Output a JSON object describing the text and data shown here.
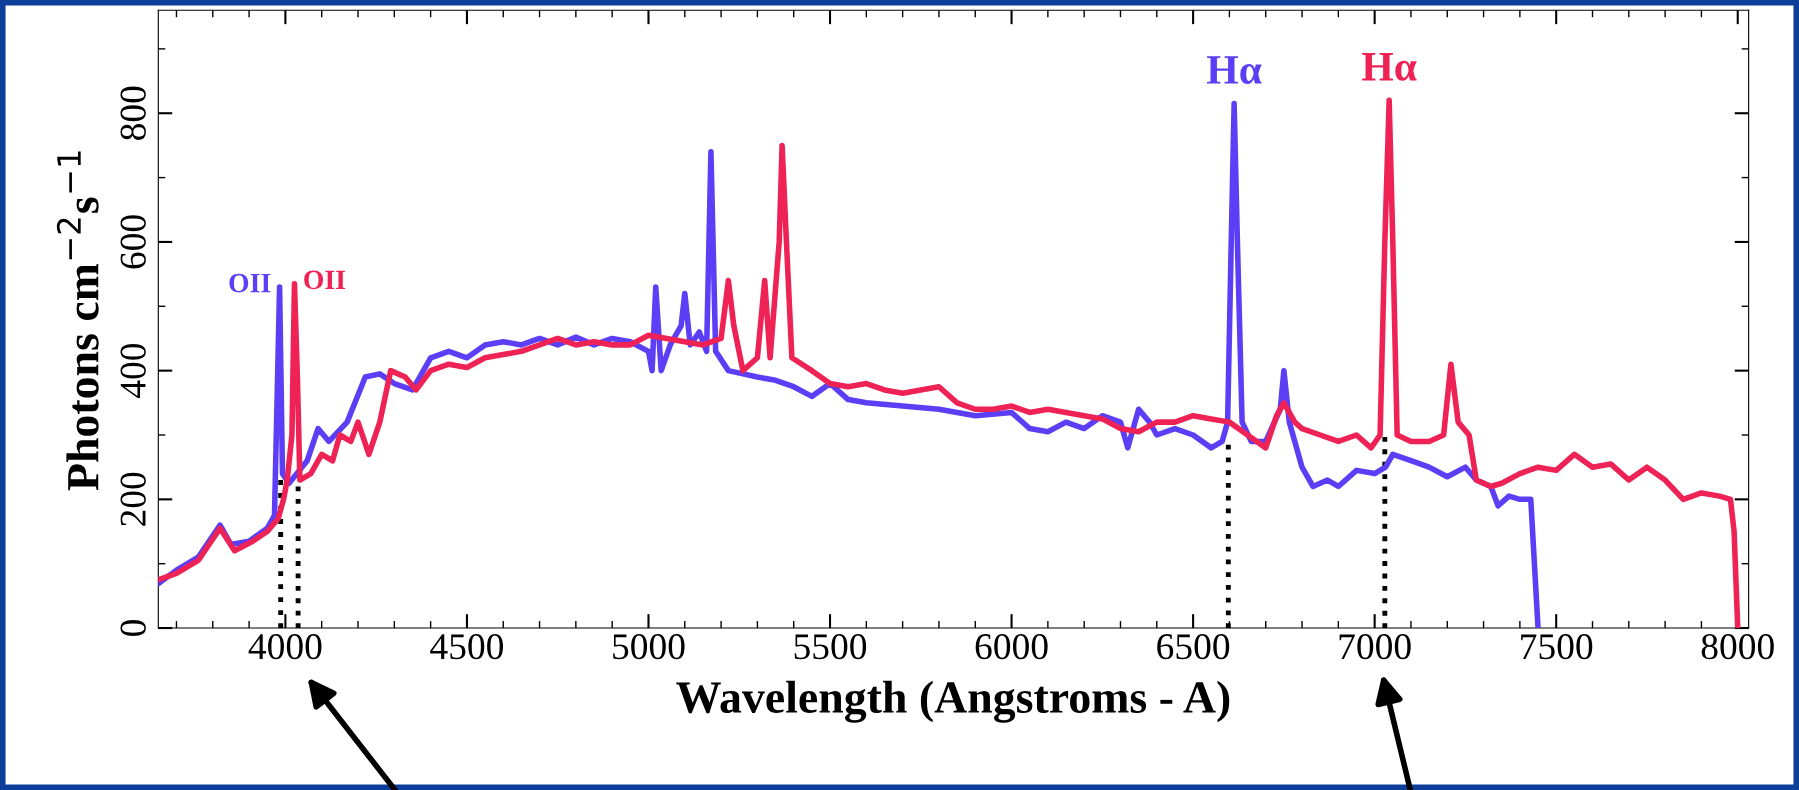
{
  "chart_data": {
    "type": "line",
    "xlabel": "Wavelength (Angstroms - A)",
    "ylabel": "Photons cm$^{−2}$s$^{−1}$",
    "xlim": [
      3650,
      8030
    ],
    "ylim": [
      0,
      960
    ],
    "xticks": [
      4000,
      4500,
      5000,
      5500,
      6000,
      6500,
      7000,
      7500,
      8000
    ],
    "yticks": [
      0,
      200,
      400,
      600,
      800
    ],
    "grid": false,
    "legend": false,
    "marker": "none",
    "line_style": "solid",
    "annotations": [
      {
        "text": "OII",
        "x": 3984,
        "y": 530
      },
      {
        "text": "OII",
        "x": 4025,
        "y": 535
      },
      {
        "text": "Hα",
        "x": 6613,
        "y": 815
      },
      {
        "text": "Hα",
        "x": 7040,
        "y": 820
      }
    ],
    "series": [
      {
        "color": "#5b3ef5",
        "x": [
          3652,
          3700,
          3760,
          3820,
          3850,
          3900,
          3950,
          3970,
          3984,
          3992,
          4010,
          4060,
          4090,
          4120,
          4170,
          4220,
          4260,
          4300,
          4350,
          4400,
          4450,
          4500,
          4550,
          4600,
          4650,
          4700,
          4750,
          4800,
          4850,
          4900,
          4950,
          5000,
          5010,
          5020,
          5035,
          5060,
          5090,
          5100,
          5115,
          5140,
          5160,
          5172,
          5185,
          5220,
          5300,
          5350,
          5400,
          5450,
          5500,
          5550,
          5600,
          5700,
          5800,
          5900,
          6000,
          6050,
          6100,
          6150,
          6200,
          6250,
          6300,
          6320,
          6350,
          6380,
          6400,
          6450,
          6500,
          6550,
          6580,
          6595,
          6605,
          6613,
          6622,
          6635,
          6660,
          6700,
          6740,
          6750,
          6765,
          6800,
          6830,
          6870,
          6900,
          6950,
          7000,
          7030,
          7050,
          7100,
          7150,
          7200,
          7250,
          7280,
          7320,
          7340,
          7370,
          7400,
          7430,
          7440,
          7450
        ],
        "values": [
          70,
          90,
          110,
          160,
          130,
          135,
          155,
          175,
          530,
          240,
          225,
          260,
          310,
          290,
          320,
          390,
          395,
          380,
          370,
          420,
          430,
          420,
          440,
          445,
          440,
          450,
          440,
          452,
          440,
          450,
          445,
          430,
          400,
          530,
          400,
          440,
          470,
          520,
          440,
          460,
          430,
          740,
          430,
          400,
          390,
          385,
          375,
          360,
          380,
          355,
          350,
          345,
          340,
          330,
          335,
          310,
          305,
          320,
          310,
          330,
          320,
          280,
          340,
          320,
          300,
          310,
          300,
          280,
          290,
          320,
          600,
          815,
          600,
          320,
          290,
          290,
          340,
          400,
          320,
          250,
          220,
          230,
          220,
          245,
          240,
          250,
          270,
          260,
          250,
          235,
          250,
          230,
          220,
          190,
          205,
          200,
          200,
          100,
          0
        ]
      },
      {
        "color": "#ee2255",
        "x": [
          3650,
          3700,
          3760,
          3820,
          3860,
          3910,
          3950,
          3980,
          3995,
          4005,
          4018,
          4025,
          4033,
          4040,
          4070,
          4100,
          4130,
          4150,
          4180,
          4200,
          4230,
          4260,
          4290,
          4330,
          4360,
          4400,
          4450,
          4500,
          4550,
          4600,
          4650,
          4700,
          4750,
          4800,
          4850,
          4900,
          4950,
          5000,
          5050,
          5100,
          5150,
          5200,
          5220,
          5235,
          5260,
          5300,
          5320,
          5335,
          5360,
          5368,
          5380,
          5395,
          5450,
          5500,
          5550,
          5600,
          5650,
          5700,
          5800,
          5850,
          5900,
          5950,
          6000,
          6050,
          6100,
          6150,
          6200,
          6250,
          6300,
          6350,
          6400,
          6450,
          6500,
          6550,
          6600,
          6650,
          6700,
          6730,
          6750,
          6780,
          6800,
          6850,
          6900,
          6950,
          6990,
          7015,
          7028,
          7040,
          7050,
          7062,
          7100,
          7150,
          7190,
          7210,
          7230,
          7260,
          7280,
          7320,
          7350,
          7400,
          7450,
          7500,
          7550,
          7600,
          7650,
          7700,
          7750,
          7800,
          7850,
          7900,
          7950,
          7980,
          7990,
          8000
        ],
        "values": [
          75,
          85,
          105,
          155,
          120,
          135,
          150,
          170,
          200,
          230,
          300,
          535,
          390,
          230,
          240,
          270,
          260,
          300,
          290,
          320,
          270,
          320,
          400,
          390,
          370,
          400,
          410,
          405,
          420,
          425,
          430,
          440,
          450,
          440,
          445,
          440,
          440,
          455,
          450,
          445,
          440,
          450,
          540,
          470,
          400,
          420,
          540,
          420,
          600,
          750,
          600,
          420,
          400,
          380,
          375,
          380,
          370,
          365,
          375,
          350,
          340,
          340,
          345,
          335,
          340,
          335,
          330,
          325,
          310,
          305,
          320,
          320,
          330,
          325,
          320,
          300,
          280,
          330,
          350,
          320,
          310,
          300,
          290,
          300,
          280,
          300,
          600,
          820,
          600,
          300,
          290,
          290,
          300,
          410,
          320,
          300,
          230,
          220,
          225,
          240,
          250,
          245,
          270,
          250,
          255,
          230,
          250,
          230,
          200,
          210,
          205,
          200,
          150,
          0
        ]
      },
      {
        "type": "line",
        "line_style": "dotted",
        "color": "#000000",
        "x": [
          3987,
          3987
        ],
        "values": [
          0,
          230
        ]
      },
      {
        "type": "line",
        "line_style": "dotted",
        "color": "#000000",
        "x": [
          4035,
          4035
        ],
        "values": [
          0,
          220
        ]
      },
      {
        "type": "line",
        "line_style": "dotted",
        "color": "#000000",
        "x": [
          6597,
          6597
        ],
        "values": [
          0,
          285
        ]
      },
      {
        "type": "line",
        "line_style": "dotted",
        "color": "#000000",
        "x": [
          7028,
          7028
        ],
        "values": [
          0,
          297
        ]
      }
    ]
  }
}
